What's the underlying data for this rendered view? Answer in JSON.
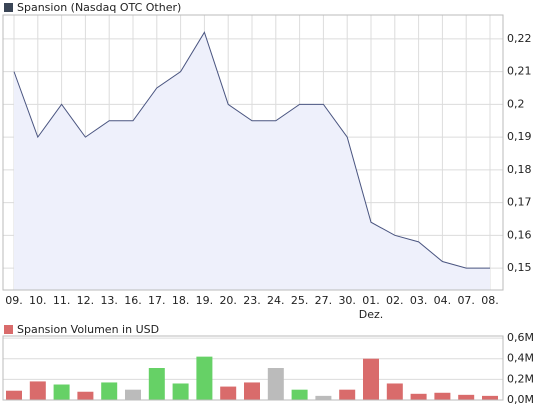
{
  "chart_data": [
    {
      "type": "line",
      "legend": "Spansion (Nasdaq OTC Other)",
      "legend_color": "#3a4556",
      "categories": [
        "09.",
        "10.",
        "11.",
        "12.",
        "13.",
        "16.",
        "17.",
        "18.",
        "19.",
        "20.",
        "23.",
        "24.",
        "25.",
        "27.",
        "30.",
        "01.",
        "02.",
        "03.",
        "04.",
        "07.",
        "08."
      ],
      "annotations": [
        {
          "category": "01.",
          "text": "Dez."
        }
      ],
      "series": [
        {
          "name": "Spansion",
          "color": "#4a5580",
          "fill": "#eef0fb",
          "values": [
            0.21,
            0.19,
            0.2,
            0.19,
            0.195,
            0.195,
            0.205,
            0.21,
            0.222,
            0.2,
            0.195,
            0.195,
            0.2,
            0.2,
            0.19,
            0.164,
            0.16,
            0.158,
            0.152,
            0.15,
            0.15
          ]
        }
      ],
      "ylim": [
        0.1433,
        0.2273
      ],
      "yticks": [
        {
          "value": 0.15,
          "label": "0,15"
        },
        {
          "value": 0.16,
          "label": "0,16"
        },
        {
          "value": 0.17,
          "label": "0,17"
        },
        {
          "value": 0.18,
          "label": "0,18"
        },
        {
          "value": 0.19,
          "label": "0,19"
        },
        {
          "value": 0.2,
          "label": "0,2"
        },
        {
          "value": 0.21,
          "label": "0,21"
        },
        {
          "value": 0.22,
          "label": "0,22"
        }
      ],
      "grid": true
    },
    {
      "type": "bar",
      "legend": "Spansion Volumen in USD",
      "legend_color": "#d96b6b",
      "series": [
        {
          "name": "Volumen",
          "values": [
            0.09,
            0.18,
            0.15,
            0.08,
            0.17,
            0.1,
            0.31,
            0.16,
            0.42,
            0.13,
            0.17,
            0.31,
            0.1,
            0.04,
            0.1,
            0.4,
            0.16,
            0.06,
            0.07,
            0.05,
            0.04
          ],
          "colors": [
            "#d96b6b",
            "#d96b6b",
            "#66d166",
            "#d96b6b",
            "#66d166",
            "#bbbbbb",
            "#66d166",
            "#66d166",
            "#66d166",
            "#d96b6b",
            "#d96b6b",
            "#bbbbbb",
            "#66d166",
            "#bbbbbb",
            "#d96b6b",
            "#d96b6b",
            "#d96b6b",
            "#d96b6b",
            "#d96b6b",
            "#d96b6b",
            "#d96b6b"
          ]
        }
      ],
      "ylim": [
        0,
        0.62
      ],
      "yticks": [
        {
          "value": 0,
          "label": "0,0M"
        },
        {
          "value": 0.2,
          "label": "0,2M"
        },
        {
          "value": 0.4,
          "label": "0,4M"
        },
        {
          "value": 0.6,
          "label": "0,6M"
        }
      ],
      "grid": true
    }
  ]
}
